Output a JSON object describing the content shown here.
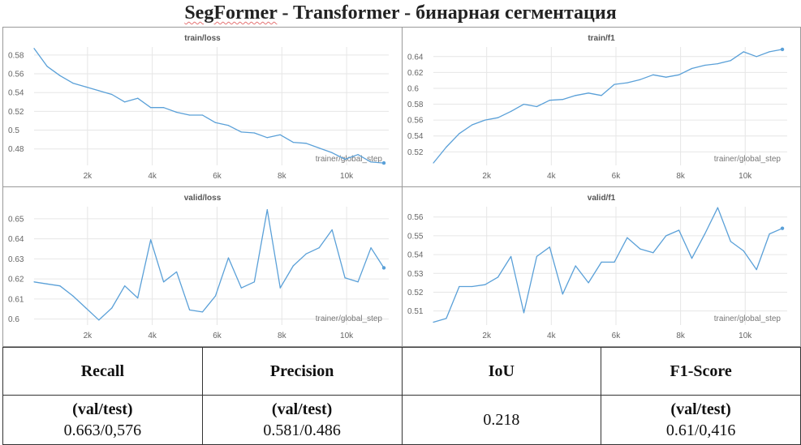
{
  "page_title": {
    "underlined": "SegFormer",
    "rest": " - Transformer - бинарная сегментация"
  },
  "style": {
    "line_color": "#5aa0d8",
    "grid_color": "#e6e6e6"
  },
  "chart_data": [
    {
      "type": "line",
      "title": "train/loss",
      "xlabel": "trainer/global_step",
      "xticks": [
        "2k",
        "4k",
        "6k",
        "8k",
        "10k"
      ],
      "xtick_values": [
        2000,
        4000,
        6000,
        8000,
        10000
      ],
      "yticks": [
        "0.48",
        "0.5",
        "0.52",
        "0.54",
        "0.56",
        "0.58"
      ],
      "ytick_values": [
        0.48,
        0.5,
        0.52,
        0.54,
        0.56,
        0.58
      ],
      "xlim": [
        350,
        11300
      ],
      "ylim": [
        0.4625,
        0.5885
      ],
      "grid": true,
      "series": [
        {
          "x": [
            350,
            750,
            1150,
            1550,
            1950,
            2350,
            2750,
            3150,
            3550,
            3950,
            4350,
            4750,
            5150,
            5550,
            5950,
            6350,
            6750,
            7150,
            7550,
            7950,
            8350,
            8750,
            9150,
            9550,
            9950,
            10350,
            10750,
            11150
          ],
          "y": [
            0.587,
            0.568,
            0.558,
            0.55,
            0.546,
            0.542,
            0.538,
            0.53,
            0.534,
            0.524,
            0.524,
            0.519,
            0.516,
            0.516,
            0.508,
            0.505,
            0.498,
            0.497,
            0.492,
            0.495,
            0.487,
            0.486,
            0.481,
            0.476,
            0.469,
            0.474,
            0.466,
            0.465
          ]
        }
      ]
    },
    {
      "type": "line",
      "title": "train/f1",
      "xlabel": "trainer/global_step",
      "xticks": [
        "2k",
        "4k",
        "6k",
        "8k",
        "10k"
      ],
      "xtick_values": [
        2000,
        4000,
        6000,
        8000,
        10000
      ],
      "yticks": [
        "0.52",
        "0.54",
        "0.56",
        "0.58",
        "0.6",
        "0.62",
        "0.64"
      ],
      "ytick_values": [
        0.52,
        0.54,
        0.56,
        0.58,
        0.6,
        0.62,
        0.64
      ],
      "xlim": [
        350,
        11300
      ],
      "ylim": [
        0.503,
        0.652
      ],
      "grid": true,
      "series": [
        {
          "x": [
            350,
            750,
            1150,
            1550,
            1950,
            2350,
            2750,
            3150,
            3550,
            3950,
            4350,
            4750,
            5150,
            5550,
            5950,
            6350,
            6750,
            7150,
            7550,
            7950,
            8350,
            8750,
            9150,
            9550,
            9950,
            10350,
            10750,
            11150
          ],
          "y": [
            0.506,
            0.526,
            0.543,
            0.554,
            0.56,
            0.563,
            0.571,
            0.58,
            0.577,
            0.585,
            0.586,
            0.591,
            0.594,
            0.591,
            0.605,
            0.607,
            0.611,
            0.617,
            0.614,
            0.617,
            0.625,
            0.629,
            0.631,
            0.635,
            0.646,
            0.64,
            0.646,
            0.649
          ]
        }
      ]
    },
    {
      "type": "line",
      "title": "valid/loss",
      "xlabel": "trainer/global_step",
      "xticks": [
        "2k",
        "4k",
        "6k",
        "8k",
        "10k"
      ],
      "xtick_values": [
        2000,
        4000,
        6000,
        8000,
        10000
      ],
      "yticks": [
        "0.6",
        "0.61",
        "0.62",
        "0.63",
        "0.64",
        "0.65"
      ],
      "ytick_values": [
        0.6,
        0.61,
        0.62,
        0.63,
        0.64,
        0.65
      ],
      "xlim": [
        350,
        11300
      ],
      "ylim": [
        0.597,
        0.656
      ],
      "grid": true,
      "series": [
        {
          "x": [
            350,
            750,
            1150,
            1550,
            1950,
            2350,
            2750,
            3150,
            3550,
            3950,
            4350,
            4750,
            5150,
            5550,
            5950,
            6350,
            6750,
            7150,
            7550,
            7950,
            8350,
            8750,
            9150,
            9550,
            9950,
            10350,
            10750,
            11150
          ],
          "y": [
            0.6185,
            0.6175,
            0.6165,
            0.6115,
            0.6055,
            0.5995,
            0.6055,
            0.6165,
            0.6105,
            0.6395,
            0.6185,
            0.6235,
            0.6045,
            0.6035,
            0.6115,
            0.6305,
            0.6155,
            0.6185,
            0.6545,
            0.6155,
            0.6265,
            0.6325,
            0.6355,
            0.6445,
            0.6205,
            0.6185,
            0.6355,
            0.6255
          ]
        }
      ]
    },
    {
      "type": "line",
      "title": "valid/f1",
      "xlabel": "trainer/global_step",
      "xticks": [
        "2k",
        "4k",
        "6k",
        "8k",
        "10k"
      ],
      "xtick_values": [
        2000,
        4000,
        6000,
        8000,
        10000
      ],
      "yticks": [
        "0.51",
        "0.52",
        "0.53",
        "0.54",
        "0.55",
        "0.56"
      ],
      "ytick_values": [
        0.51,
        0.52,
        0.53,
        0.54,
        0.55,
        0.56
      ],
      "xlim": [
        350,
        11300
      ],
      "ylim": [
        0.5025,
        0.5655
      ],
      "grid": true,
      "series": [
        {
          "x": [
            350,
            750,
            1150,
            1550,
            1950,
            2350,
            2750,
            3150,
            3550,
            3950,
            4350,
            4750,
            5150,
            5550,
            5950,
            6350,
            6750,
            7150,
            7550,
            7950,
            8350,
            8750,
            9150,
            9550,
            9950,
            10350,
            10750,
            11150
          ],
          "y": [
            0.504,
            0.506,
            0.523,
            0.523,
            0.524,
            0.528,
            0.539,
            0.509,
            0.539,
            0.544,
            0.519,
            0.534,
            0.525,
            0.536,
            0.536,
            0.549,
            0.543,
            0.541,
            0.55,
            0.553,
            0.538,
            0.551,
            0.565,
            0.547,
            0.542,
            0.532,
            0.551,
            0.554
          ]
        }
      ]
    }
  ],
  "metrics_table": {
    "headers": [
      "Recall",
      "Precision",
      "IoU",
      "F1-Score"
    ],
    "recall": {
      "sub": "(val/test)",
      "value": "0.663/0,576"
    },
    "precision": {
      "sub": "(val/test)",
      "value": "0.581/0.486"
    },
    "iou": {
      "value": "0.218"
    },
    "f1": {
      "sub": "(val/test)",
      "value": "0.61/0,416"
    }
  }
}
